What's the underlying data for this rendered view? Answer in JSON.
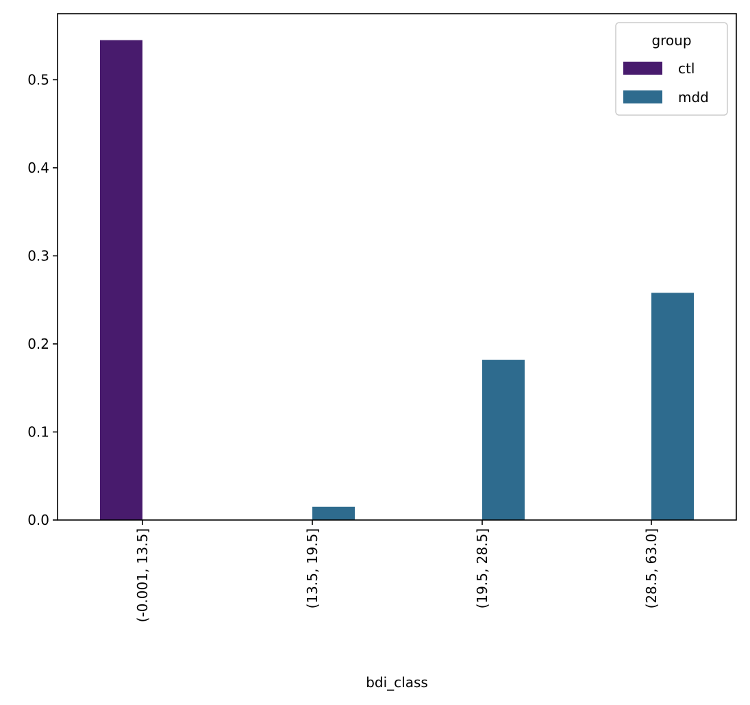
{
  "chart_data": {
    "type": "bar",
    "categories": [
      "(-0.001, 13.5]",
      "(13.5, 19.5]",
      "(19.5, 28.5]",
      "(28.5, 63.0]"
    ],
    "series": [
      {
        "name": "ctl",
        "color": "#481b6d",
        "values": [
          0.545,
          0.0,
          0.0,
          0.0
        ]
      },
      {
        "name": "mdd",
        "color": "#2e6b8e",
        "values": [
          0.0,
          0.015,
          0.182,
          0.258
        ]
      }
    ],
    "xlabel": "bdi_class",
    "ylabel": "",
    "ylim": [
      0,
      0.575
    ],
    "yticks": [
      "0.0",
      "0.1",
      "0.2",
      "0.3",
      "0.4",
      "0.5"
    ],
    "legend": {
      "title": "group",
      "position": "top-right"
    },
    "grid": false
  }
}
